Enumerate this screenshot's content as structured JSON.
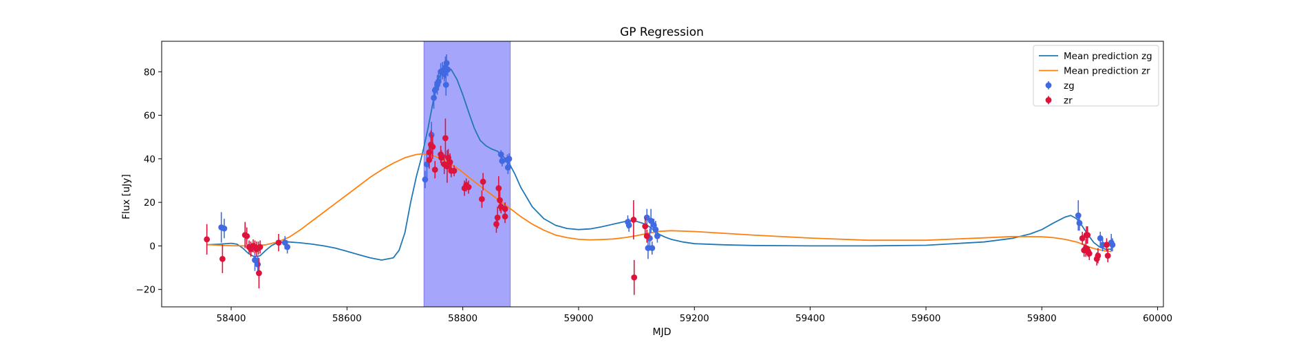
{
  "chart_data": {
    "type": "scatter",
    "title": "GP Regression",
    "xlabel": "MJD",
    "ylabel": "Flux [uJy]",
    "xlim": [
      58280,
      60010
    ],
    "ylim": [
      -28,
      94
    ],
    "xticks": [
      58400,
      58600,
      58800,
      59000,
      59200,
      59400,
      59600,
      59800,
      60000
    ],
    "yticks": [
      -20,
      0,
      20,
      40,
      60,
      80
    ],
    "grid": false,
    "legend_position": "top-right",
    "highlight_band": {
      "x0": 58733,
      "x1": 58882,
      "color": "#a5a5fb"
    },
    "series": [
      {
        "name": "Mean prediction zg",
        "kind": "line",
        "color": "#1f77b4",
        "x": [
          58358,
          58380,
          58400,
          58410,
          58420,
          58430,
          58440,
          58450,
          58460,
          58470,
          58480,
          58490,
          58500,
          58520,
          58540,
          58560,
          58580,
          58600,
          58620,
          58640,
          58660,
          58680,
          58690,
          58700,
          58710,
          58720,
          58730,
          58740,
          58750,
          58760,
          58770,
          58780,
          58790,
          58800,
          58810,
          58820,
          58830,
          58840,
          58850,
          58860,
          58870,
          58880,
          58890,
          58900,
          58920,
          58940,
          58960,
          58980,
          59000,
          59020,
          59040,
          59060,
          59080,
          59090,
          59100,
          59110,
          59120,
          59130,
          59140,
          59150,
          59160,
          59180,
          59200,
          59250,
          59300,
          59400,
          59500,
          59600,
          59700,
          59750,
          59780,
          59800,
          59820,
          59840,
          59850,
          59860,
          59870,
          59880,
          59890,
          59900,
          59910,
          59920
        ],
        "y": [
          0.5,
          0.8,
          1.2,
          0.8,
          -1.0,
          -3.5,
          -5.0,
          -4.5,
          -2.0,
          0.2,
          1.5,
          1.8,
          1.8,
          1.4,
          0.8,
          0.0,
          -1.0,
          -2.5,
          -4.0,
          -5.5,
          -6.5,
          -5.5,
          -2.0,
          6.0,
          20.0,
          32.0,
          42.0,
          54.0,
          68.0,
          78.0,
          82.0,
          81.0,
          76.5,
          69.5,
          61.5,
          54.0,
          48.5,
          46.0,
          44.5,
          43.5,
          41.0,
          38.0,
          33.0,
          27.0,
          18.0,
          12.5,
          9.5,
          8.0,
          7.5,
          7.8,
          8.8,
          10.0,
          11.2,
          11.5,
          11.3,
          10.5,
          9.2,
          7.2,
          5.2,
          4.0,
          3.0,
          1.8,
          1.0,
          0.5,
          0.2,
          0.0,
          0.0,
          0.3,
          1.8,
          3.5,
          5.5,
          7.5,
          10.5,
          13.2,
          14.0,
          12.5,
          9.0,
          5.0,
          1.5,
          -0.5,
          -1.5,
          -1.5
        ]
      },
      {
        "name": "Mean prediction zr",
        "kind": "line",
        "color": "#ff7f0e",
        "x": [
          58358,
          58380,
          58400,
          58420,
          58440,
          58460,
          58480,
          58500,
          58520,
          58540,
          58560,
          58580,
          58600,
          58620,
          58640,
          58660,
          58680,
          58700,
          58720,
          58730,
          58740,
          58750,
          58760,
          58770,
          58780,
          58790,
          58800,
          58820,
          58840,
          58860,
          58880,
          58900,
          58920,
          58940,
          58960,
          58980,
          59000,
          59020,
          59040,
          59060,
          59080,
          59100,
          59120,
          59140,
          59160,
          59200,
          59300,
          59400,
          59500,
          59600,
          59700,
          59750,
          59800,
          59820,
          59840,
          59860,
          59870,
          59880,
          59890,
          59900,
          59910,
          59920
        ],
        "y": [
          0.6,
          0.3,
          0.1,
          0.0,
          0.0,
          0.5,
          1.8,
          4.0,
          7.5,
          11.5,
          15.5,
          19.5,
          23.5,
          27.5,
          31.5,
          35.0,
          38.0,
          40.5,
          42.0,
          42.3,
          42.0,
          41.3,
          40.3,
          39.0,
          37.5,
          35.8,
          33.8,
          29.5,
          25.5,
          21.5,
          17.5,
          13.5,
          10.0,
          7.2,
          5.0,
          3.8,
          3.0,
          2.8,
          2.9,
          3.2,
          3.8,
          4.7,
          5.8,
          6.7,
          7.0,
          6.6,
          5.0,
          3.6,
          2.6,
          2.6,
          3.7,
          4.3,
          4.2,
          3.8,
          3.0,
          1.8,
          0.8,
          -0.3,
          -1.2,
          -1.8,
          -2.3,
          -2.6
        ]
      },
      {
        "name": "zg",
        "kind": "errorbar",
        "color": "#4169e1",
        "points": [
          {
            "x": 58383,
            "y": 8.5,
            "e": 7.0
          },
          {
            "x": 58388,
            "y": 8.0,
            "e": 4.5
          },
          {
            "x": 58441,
            "y": -6.5,
            "e": 5.0
          },
          {
            "x": 58446,
            "y": -8.5,
            "e": 4.0
          },
          {
            "x": 58493,
            "y": 1.5,
            "e": 3.0
          },
          {
            "x": 58497,
            "y": -0.5,
            "e": 3.0
          },
          {
            "x": 58735,
            "y": 30.5,
            "e": 4.0
          },
          {
            "x": 58738,
            "y": 37.5,
            "e": 6.0
          },
          {
            "x": 58743,
            "y": 43.0,
            "e": 4.0
          },
          {
            "x": 58746,
            "y": 51.0,
            "e": 6.0
          },
          {
            "x": 58750,
            "y": 68.0,
            "e": 5.0
          },
          {
            "x": 58752,
            "y": 71.5,
            "e": 4.0
          },
          {
            "x": 58756,
            "y": 74.0,
            "e": 4.5
          },
          {
            "x": 58758,
            "y": 75.5,
            "e": 4.0
          },
          {
            "x": 58762,
            "y": 80.0,
            "e": 4.0
          },
          {
            "x": 58765,
            "y": 80.5,
            "e": 4.0
          },
          {
            "x": 58768,
            "y": 79.0,
            "e": 3.5
          },
          {
            "x": 58770,
            "y": 82.0,
            "e": 5.0
          },
          {
            "x": 58772,
            "y": 84.0,
            "e": 4.0
          },
          {
            "x": 58774,
            "y": 81.0,
            "e": 3.0
          },
          {
            "x": 58771,
            "y": 74.0,
            "e": 5.0
          },
          {
            "x": 58866,
            "y": 42.0,
            "e": 2.0
          },
          {
            "x": 58868,
            "y": 39.0,
            "e": 2.5
          },
          {
            "x": 58877,
            "y": 39.5,
            "e": 2.5
          },
          {
            "x": 58880,
            "y": 40.0,
            "e": 2.5
          },
          {
            "x": 58878,
            "y": 36.0,
            "e": 3.0
          },
          {
            "x": 59085,
            "y": 11.0,
            "e": 3.0
          },
          {
            "x": 59087,
            "y": 9.5,
            "e": 3.0
          },
          {
            "x": 59118,
            "y": 13.0,
            "e": 4.0
          },
          {
            "x": 59120,
            "y": -1.0,
            "e": 5.0
          },
          {
            "x": 59123,
            "y": 3.5,
            "e": 4.5
          },
          {
            "x": 59125,
            "y": 11.5,
            "e": 5.5
          },
          {
            "x": 59127,
            "y": -1.0,
            "e": 3.0
          },
          {
            "x": 59130,
            "y": 9.5,
            "e": 3.0
          },
          {
            "x": 59133,
            "y": 7.5,
            "e": 4.0
          },
          {
            "x": 59136,
            "y": 4.5,
            "e": 3.0
          },
          {
            "x": 59863,
            "y": 14.0,
            "e": 7.0
          },
          {
            "x": 59865,
            "y": 10.5,
            "e": 3.5
          },
          {
            "x": 59901,
            "y": 3.5,
            "e": 3.0
          },
          {
            "x": 59905,
            "y": 0.5,
            "e": 3.0
          },
          {
            "x": 59920,
            "y": 1.5,
            "e": 4.0
          },
          {
            "x": 59922,
            "y": 0.5,
            "e": 3.0
          }
        ]
      },
      {
        "name": "zr",
        "kind": "errorbar",
        "color": "#dc143c",
        "points": [
          {
            "x": 58358,
            "y": 3.0,
            "e": 7.0
          },
          {
            "x": 58385,
            "y": -6.0,
            "e": 6.5
          },
          {
            "x": 58424,
            "y": 5.0,
            "e": 6.0
          },
          {
            "x": 58427,
            "y": 4.5,
            "e": 4.0
          },
          {
            "x": 58431,
            "y": -0.5,
            "e": 3.0
          },
          {
            "x": 58434,
            "y": -1.5,
            "e": 3.5
          },
          {
            "x": 58438,
            "y": 0.0,
            "e": 3.0
          },
          {
            "x": 58441,
            "y": -0.5,
            "e": 3.0
          },
          {
            "x": 58444,
            "y": -1.5,
            "e": 3.5
          },
          {
            "x": 58447,
            "y": -1.0,
            "e": 3.0
          },
          {
            "x": 58450,
            "y": -0.5,
            "e": 3.0
          },
          {
            "x": 58448,
            "y": -12.5,
            "e": 7.0
          },
          {
            "x": 58482,
            "y": 1.5,
            "e": 4.0
          },
          {
            "x": 58742,
            "y": 39.5,
            "e": 4.0
          },
          {
            "x": 58745,
            "y": 46.5,
            "e": 6.5
          },
          {
            "x": 58742,
            "y": 43.0,
            "e": 4.0
          },
          {
            "x": 58748,
            "y": 45.5,
            "e": 5.5
          },
          {
            "x": 58752,
            "y": 35.0,
            "e": 4.0
          },
          {
            "x": 58762,
            "y": 42.0,
            "e": 4.0
          },
          {
            "x": 58763,
            "y": 40.5,
            "e": 3.5
          },
          {
            "x": 58768,
            "y": 37.5,
            "e": 4.5
          },
          {
            "x": 58770,
            "y": 49.5,
            "e": 9.0
          },
          {
            "x": 58773,
            "y": 36.5,
            "e": 7.5
          },
          {
            "x": 58775,
            "y": 40.5,
            "e": 4.0
          },
          {
            "x": 58778,
            "y": 38.5,
            "e": 4.0
          },
          {
            "x": 58780,
            "y": 34.5,
            "e": 3.0
          },
          {
            "x": 58785,
            "y": 34.5,
            "e": 2.5
          },
          {
            "x": 58803,
            "y": 26.5,
            "e": 3.5
          },
          {
            "x": 58806,
            "y": 28.0,
            "e": 3.0
          },
          {
            "x": 58810,
            "y": 27.0,
            "e": 3.0
          },
          {
            "x": 58833,
            "y": 21.5,
            "e": 4.0
          },
          {
            "x": 58835,
            "y": 29.5,
            "e": 4.0
          },
          {
            "x": 58858,
            "y": 10.0,
            "e": 4.0
          },
          {
            "x": 58860,
            "y": 13.0,
            "e": 5.0
          },
          {
            "x": 58862,
            "y": 26.5,
            "e": 5.5
          },
          {
            "x": 58864,
            "y": 21.0,
            "e": 5.0
          },
          {
            "x": 58866,
            "y": 18.0,
            "e": 3.0
          },
          {
            "x": 58873,
            "y": 17.0,
            "e": 3.0
          },
          {
            "x": 58873,
            "y": 13.5,
            "e": 3.0
          },
          {
            "x": 59095,
            "y": 12.0,
            "e": 9.0
          },
          {
            "x": 59096,
            "y": -14.5,
            "e": 8.0
          },
          {
            "x": 59115,
            "y": 9.0,
            "e": 4.0
          },
          {
            "x": 59118,
            "y": 4.5,
            "e": 3.0
          },
          {
            "x": 59870,
            "y": 3.5,
            "e": 3.0
          },
          {
            "x": 59873,
            "y": -2.0,
            "e": 3.0
          },
          {
            "x": 59876,
            "y": -1.0,
            "e": 4.0
          },
          {
            "x": 59877,
            "y": 5.0,
            "e": 4.0
          },
          {
            "x": 59879,
            "y": 5.0,
            "e": 4.0
          },
          {
            "x": 59880,
            "y": -2.5,
            "e": 2.5
          },
          {
            "x": 59882,
            "y": -3.5,
            "e": 3.0
          },
          {
            "x": 59895,
            "y": -6.0,
            "e": 3.0
          },
          {
            "x": 59897,
            "y": -4.5,
            "e": 3.5
          },
          {
            "x": 59912,
            "y": 0.5,
            "e": 3.0
          },
          {
            "x": 59914,
            "y": -4.5,
            "e": 3.0
          }
        ]
      }
    ]
  }
}
